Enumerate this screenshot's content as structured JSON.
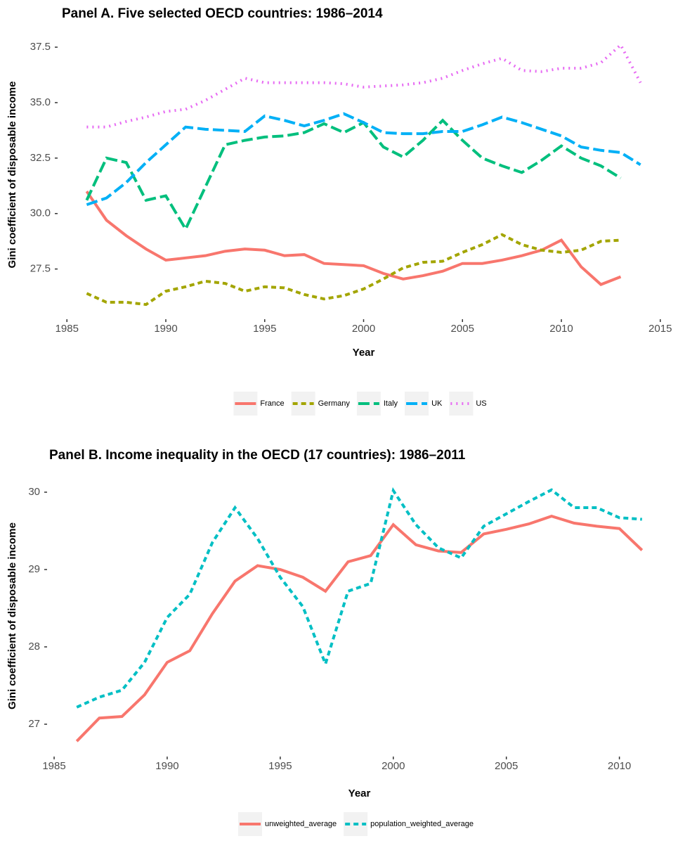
{
  "chart_data": [
    {
      "type": "line",
      "title": "Panel A. Five selected OECD countries: 1986–2014",
      "x_label": "Year",
      "y_label": "Gini coefficient of disposable income",
      "x": [
        1986,
        1987,
        1988,
        1989,
        1990,
        1991,
        1992,
        1993,
        1994,
        1995,
        1996,
        1997,
        1998,
        1999,
        2000,
        2001,
        2002,
        2003,
        2004,
        2005,
        2006,
        2007,
        2008,
        2009,
        2010,
        2011,
        2012,
        2013,
        2014
      ],
      "series": [
        {
          "name": "France",
          "color": "#F8766D",
          "linestyle": "solid",
          "values": [
            31.0,
            29.7,
            29.0,
            28.4,
            27.9,
            28.0,
            28.1,
            28.3,
            28.4,
            28.35,
            28.1,
            28.15,
            27.75,
            27.7,
            27.65,
            27.3,
            27.05,
            27.2,
            27.4,
            27.75,
            27.75,
            27.9,
            28.1,
            28.35,
            28.8,
            27.6,
            26.8,
            27.15,
            null
          ]
        },
        {
          "name": "Germany",
          "color": "#A3A500",
          "linestyle": "dashed",
          "values": [
            26.4,
            26.0,
            26.0,
            25.9,
            26.5,
            26.7,
            26.95,
            26.85,
            26.5,
            26.7,
            26.65,
            26.35,
            26.15,
            26.3,
            26.6,
            27.05,
            27.55,
            27.8,
            27.85,
            28.25,
            28.6,
            29.05,
            28.6,
            28.35,
            28.25,
            28.35,
            28.75,
            28.8,
            null
          ]
        },
        {
          "name": "Italy",
          "color": "#00BF7D",
          "linestyle": "longdash",
          "values": [
            30.6,
            32.5,
            32.3,
            30.6,
            30.8,
            29.3,
            31.2,
            33.1,
            33.3,
            33.45,
            33.5,
            33.65,
            34.05,
            33.65,
            34.1,
            33.0,
            32.55,
            33.3,
            34.2,
            33.3,
            32.5,
            32.15,
            31.85,
            32.4,
            33.05,
            32.5,
            32.15,
            31.6,
            null
          ]
        },
        {
          "name": "UK",
          "color": "#00B0F6",
          "linestyle": "longdash",
          "values": [
            30.4,
            30.7,
            31.4,
            32.3,
            33.1,
            33.9,
            33.8,
            33.75,
            33.7,
            34.4,
            34.2,
            33.95,
            34.2,
            34.5,
            34.1,
            33.65,
            33.6,
            33.6,
            33.7,
            33.7,
            34.0,
            34.35,
            34.1,
            33.8,
            33.5,
            33.0,
            32.85,
            32.75,
            32.2
          ]
        },
        {
          "name": "US",
          "color": "#E76BF3",
          "linestyle": "dotted",
          "values": [
            33.9,
            33.9,
            34.15,
            34.35,
            34.6,
            34.7,
            35.1,
            35.6,
            36.1,
            35.9,
            35.9,
            35.9,
            35.9,
            35.85,
            35.7,
            35.75,
            35.8,
            35.9,
            36.1,
            36.45,
            36.75,
            37.0,
            36.45,
            36.4,
            36.55,
            36.55,
            36.8,
            37.6,
            35.9
          ]
        }
      ],
      "xlim": [
        1984.6,
        2015.4
      ],
      "xticks": [
        1985,
        1990,
        1995,
        2000,
        2005,
        2010,
        2015
      ],
      "ylim": [
        25.3,
        38.2
      ],
      "yticks": [
        {
          "value": 27.5,
          "label": "27.5"
        },
        {
          "value": 30,
          "label": "30.0"
        },
        {
          "value": 32.5,
          "label": "32.5"
        },
        {
          "value": 35,
          "label": "35.0"
        },
        {
          "value": 37.5,
          "label": "37.5"
        }
      ],
      "grid": false,
      "legend": "bottom"
    },
    {
      "type": "line",
      "title": "Panel B. Income inequality in the OECD (17 countries): 1986–2011",
      "x_label": "Year",
      "y_label": "Gini coefficient of disposable income",
      "x": [
        1986,
        1987,
        1988,
        1989,
        1990,
        1991,
        1992,
        1993,
        1994,
        1995,
        1996,
        1997,
        1998,
        1999,
        2000,
        2001,
        2002,
        2003,
        2004,
        2005,
        2006,
        2007,
        2008,
        2009,
        2010,
        2011
      ],
      "series": [
        {
          "name": "unweighted_average",
          "color": "#F8766D",
          "linestyle": "solid",
          "values": [
            26.78,
            27.08,
            27.1,
            27.38,
            27.8,
            27.95,
            28.43,
            28.85,
            29.05,
            29.0,
            28.9,
            28.72,
            29.1,
            29.18,
            29.58,
            29.32,
            29.24,
            29.22,
            29.46,
            29.52,
            29.59,
            29.69,
            29.6,
            29.56,
            29.53,
            29.25
          ]
        },
        {
          "name": "population_weighted_average",
          "color": "#00BFC4",
          "linestyle": "dashed",
          "values": [
            27.22,
            27.35,
            27.44,
            27.8,
            28.38,
            28.68,
            29.35,
            29.8,
            29.4,
            28.9,
            28.52,
            27.78,
            28.72,
            28.82,
            30.02,
            29.58,
            29.28,
            29.15,
            29.56,
            29.72,
            29.88,
            30.03,
            29.8,
            29.8,
            29.67,
            29.65
          ]
        }
      ],
      "xlim": [
        1984.75,
        2012.25
      ],
      "xticks": [
        1985,
        1990,
        1995,
        2000,
        2005,
        2010
      ],
      "ylim": [
        26.6,
        30.2
      ],
      "yticks": [
        27,
        28,
        29,
        30
      ],
      "grid": false,
      "legend": "bottom"
    }
  ]
}
